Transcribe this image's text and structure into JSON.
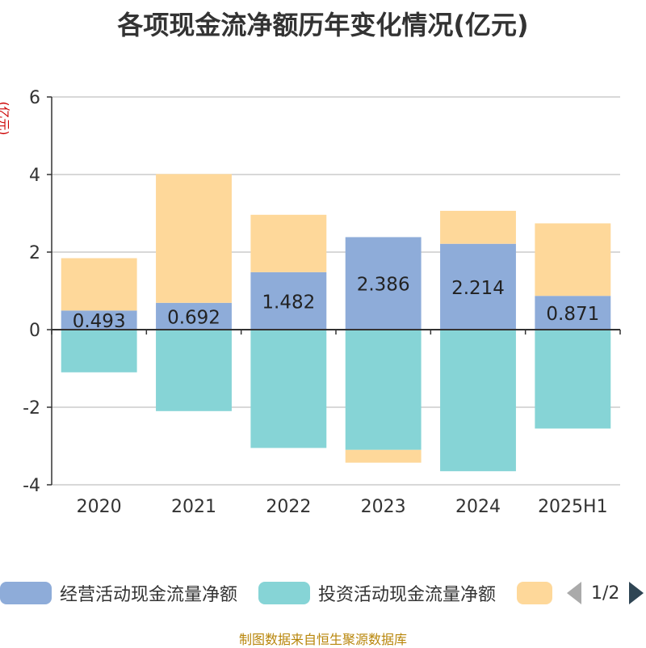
{
  "title": "各项现金流净额历年变化情况(亿元)",
  "y_unit": "(亿元)",
  "colors": {
    "operating": "#8eacd9",
    "investing": "#86d4d6",
    "financing": "#fed89a",
    "axis": "#333333",
    "grid": "#cccccc"
  },
  "legend": {
    "items": [
      {
        "label": "经营活动现金流量净额",
        "color": "#8eacd9"
      },
      {
        "label": "投资活动现金流量净额",
        "color": "#86d4d6"
      },
      {
        "label": "",
        "color": "#fed89a"
      }
    ],
    "page_indicator": "1/2"
  },
  "footer": "制图数据来自恒生聚源数据库",
  "chart_data": {
    "type": "bar",
    "stacked": true,
    "categories": [
      "2020",
      "2021",
      "2022",
      "2023",
      "2024",
      "2025H1"
    ],
    "series": [
      {
        "name": "经营活动现金流量净额",
        "values": [
          0.493,
          0.692,
          1.482,
          2.386,
          2.214,
          0.871
        ],
        "color": "#8eacd9",
        "labels": [
          "0.493",
          "0.692",
          "1.482",
          "2.386",
          "2.214",
          "0.871"
        ]
      },
      {
        "name": "投资活动现金流量净额",
        "values": [
          -1.1,
          -2.1,
          -3.05,
          -3.1,
          -3.65,
          -2.55
        ],
        "color": "#86d4d6"
      },
      {
        "values": [
          1.35,
          3.32,
          1.48,
          -0.33,
          0.85,
          1.87
        ],
        "color": "#fed89a"
      }
    ],
    "ylim": [
      -4,
      6
    ],
    "yticks": [
      -4,
      -2,
      0,
      2,
      4,
      6
    ],
    "grid": true,
    "legend_position": "bottom"
  }
}
